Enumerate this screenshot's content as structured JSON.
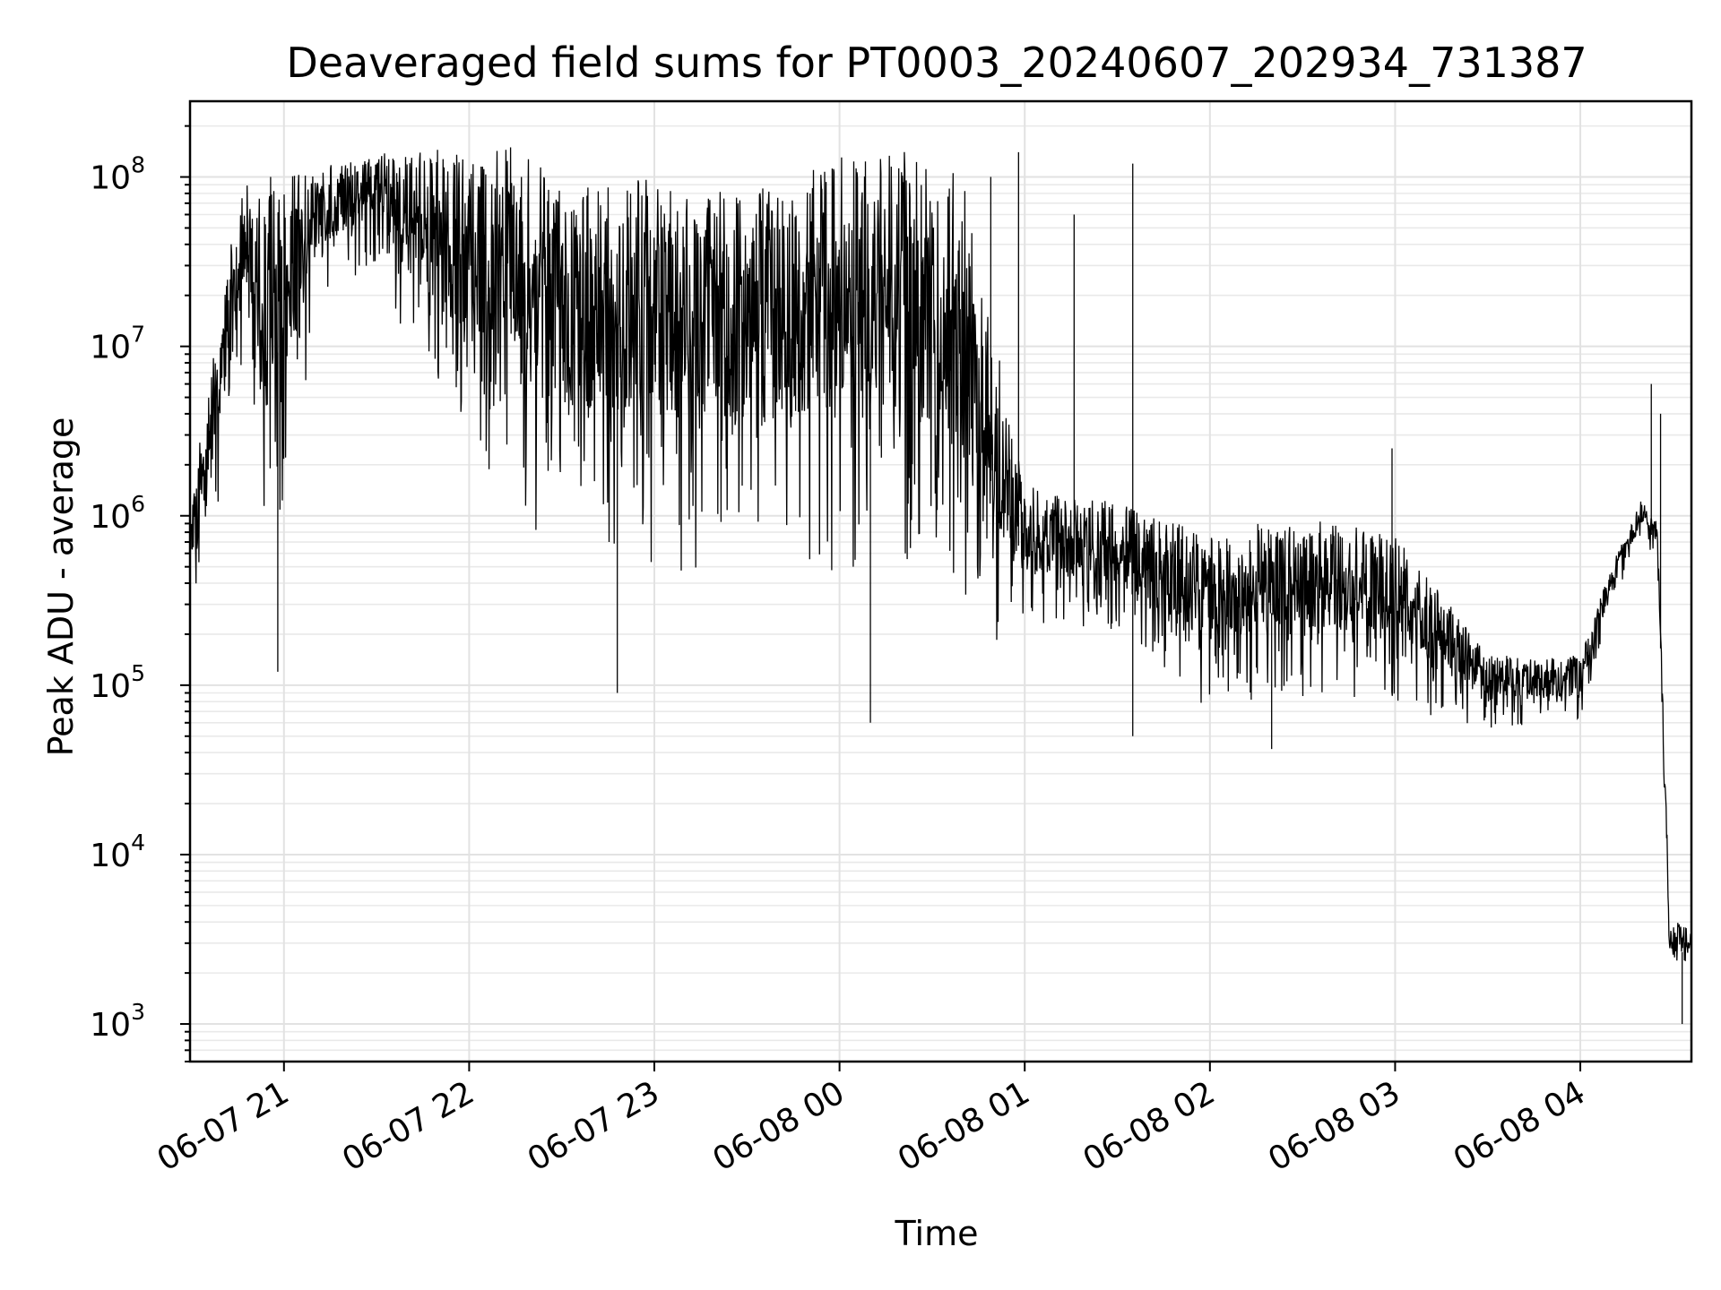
{
  "chart_data": {
    "type": "line",
    "title": "Deaveraged field sums for PT0003_20240607_202934_731387",
    "xlabel": "Time",
    "ylabel": "Peak ADU - average",
    "yscale": "log",
    "ylim": [
      600,
      280000000
    ],
    "xlim": [
      "2024-06-07 20:29:34",
      "2024-06-08 04:36:00"
    ],
    "grid": true,
    "x_ticks": [
      "2024-06-07 21:00",
      "2024-06-07 22:00",
      "2024-06-07 23:00",
      "2024-06-08 00:00",
      "2024-06-08 01:00",
      "2024-06-08 02:00",
      "2024-06-08 03:00",
      "2024-06-08 04:00"
    ],
    "x_tick_labels": [
      "06-07 21",
      "06-07 22",
      "06-07 23",
      "06-08 00",
      "06-08 01",
      "06-08 02",
      "06-08 03",
      "06-08 04"
    ],
    "y_ticks": [
      1000,
      10000,
      100000,
      1000000,
      10000000,
      100000000
    ],
    "y_tick_labels": [
      {
        "base": "10",
        "exp": "3"
      },
      {
        "base": "10",
        "exp": "4"
      },
      {
        "base": "10",
        "exp": "5"
      },
      {
        "base": "10",
        "exp": "6"
      },
      {
        "base": "10",
        "exp": "7"
      },
      {
        "base": "10",
        "exp": "8"
      }
    ],
    "series": [
      {
        "color": "#000000",
        "envelope": [
          {
            "x": "2024-06-07 20:30",
            "low": 200000,
            "high": 1500000
          },
          {
            "x": "2024-06-07 20:36",
            "low": 500000,
            "high": 6000000
          },
          {
            "x": "2024-06-07 20:42",
            "low": 3000000,
            "high": 40000000
          },
          {
            "x": "2024-06-07 20:48",
            "low": 8000000,
            "high": 100000000
          },
          {
            "x": "2024-06-07 20:54",
            "low": 500000,
            "high": 100000000
          },
          {
            "x": "2024-06-07 21:00",
            "low": 1000000,
            "high": 110000000
          },
          {
            "x": "2024-06-07 21:12",
            "low": 20000000,
            "high": 120000000
          },
          {
            "x": "2024-06-07 21:30",
            "low": 30000000,
            "high": 140000000
          },
          {
            "x": "2024-06-07 21:45",
            "low": 5000000,
            "high": 150000000
          },
          {
            "x": "2024-06-07 22:00",
            "low": 2000000,
            "high": 150000000
          },
          {
            "x": "2024-06-07 22:15",
            "low": 1000000,
            "high": 150000000
          },
          {
            "x": "2024-06-07 22:30",
            "low": 500000,
            "high": 100000000
          },
          {
            "x": "2024-06-07 23:00",
            "low": 500000,
            "high": 100000000
          },
          {
            "x": "2024-06-07 23:30",
            "low": 400000,
            "high": 80000000
          },
          {
            "x": "2024-06-08 00:00",
            "low": 400000,
            "high": 130000000
          },
          {
            "x": "2024-06-08 00:20",
            "low": 300000,
            "high": 150000000
          },
          {
            "x": "2024-06-08 00:40",
            "low": 150000,
            "high": 100000000
          },
          {
            "x": "2024-06-08 01:00",
            "low": 200000,
            "high": 1500000
          },
          {
            "x": "2024-06-08 01:30",
            "low": 200000,
            "high": 1200000
          },
          {
            "x": "2024-06-08 02:00",
            "low": 70000,
            "high": 800000
          },
          {
            "x": "2024-06-08 02:30",
            "low": 80000,
            "high": 1000000
          },
          {
            "x": "2024-06-08 03:00",
            "low": 70000,
            "high": 800000
          },
          {
            "x": "2024-06-08 03:30",
            "low": 55000,
            "high": 150000
          },
          {
            "x": "2024-06-08 04:00",
            "low": 60000,
            "high": 150000
          },
          {
            "x": "2024-06-08 04:10",
            "low": 300000,
            "high": 500000
          },
          {
            "x": "2024-06-08 04:20",
            "low": 700000,
            "high": 1300000
          },
          {
            "x": "2024-06-08 04:25",
            "low": 500000,
            "high": 900000
          },
          {
            "x": "2024-06-08 04:29",
            "low": 1500,
            "high": 4000
          },
          {
            "x": "2024-06-08 04:36",
            "low": 2000,
            "high": 4000
          }
        ],
        "spikes": [
          {
            "x": "2024-06-08 00:49",
            "y": 100000000
          },
          {
            "x": "2024-06-08 00:58",
            "y": 140000000
          },
          {
            "x": "2024-06-08 01:16",
            "y": 60000000
          },
          {
            "x": "2024-06-08 01:35",
            "y": 120000000
          },
          {
            "x": "2024-06-08 02:59",
            "y": 2500000
          },
          {
            "x": "2024-06-08 04:23",
            "y": 6000000
          },
          {
            "x": "2024-06-08 04:26",
            "y": 4000000
          },
          {
            "x": "2024-06-07 20:58",
            "y": 120000
          },
          {
            "x": "2024-06-07 22:48",
            "y": 90000
          },
          {
            "x": "2024-06-08 00:10",
            "y": 60000
          },
          {
            "x": "2024-06-08 01:35",
            "y": 50000
          },
          {
            "x": "2024-06-08 02:20",
            "y": 42000
          },
          {
            "x": "2024-06-08 04:33",
            "y": 1000
          }
        ]
      }
    ]
  }
}
